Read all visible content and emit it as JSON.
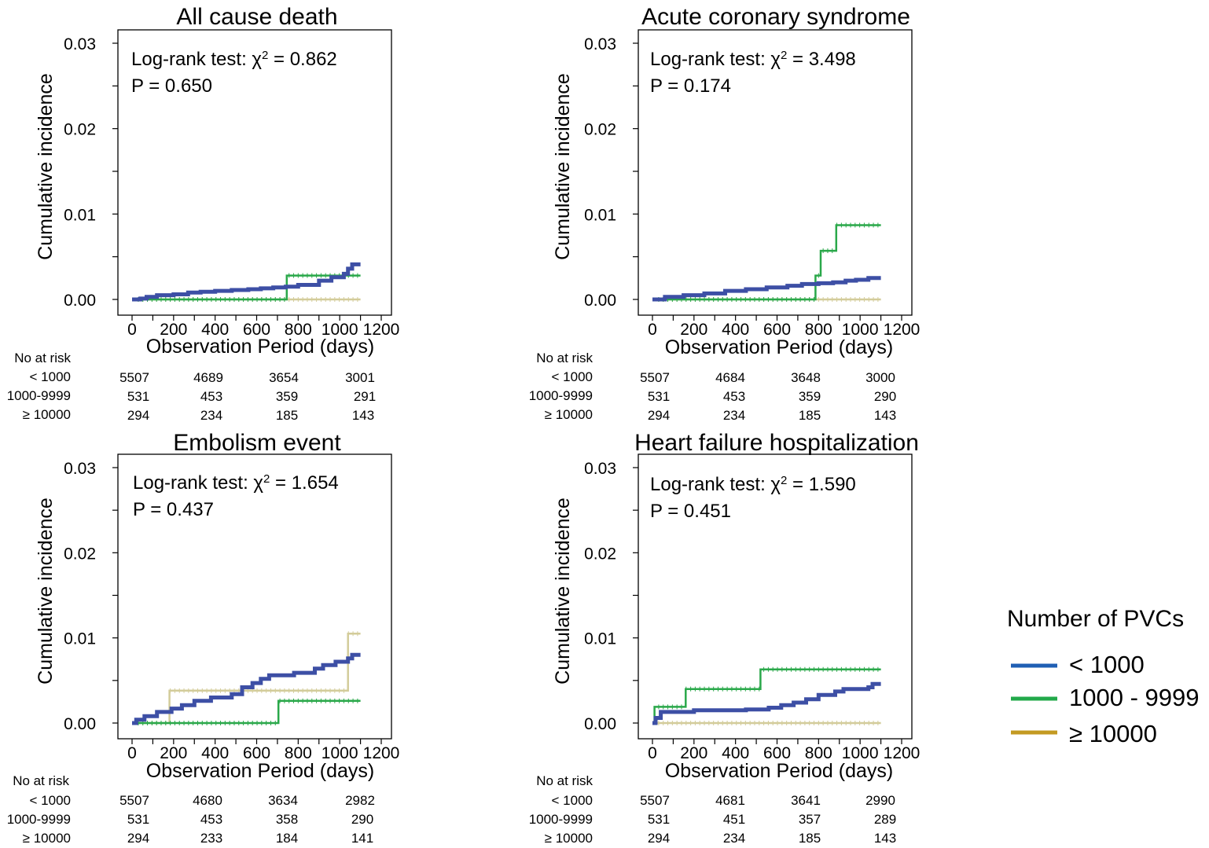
{
  "panels": [
    {
      "title": "All cause death",
      "log_rank_label": "Log-rank test: χ",
      "chi_superscript": "2",
      "chi_value": " = 0.862",
      "p_text": "P = 0.650"
    },
    {
      "title": "Acute coronary syndrome",
      "log_rank_label": "Log-rank test: χ",
      "chi_superscript": "2",
      "chi_value": " = 3.498",
      "p_text": "P = 0.174"
    },
    {
      "title": "Embolism event",
      "log_rank_label": "Log-rank test: χ",
      "chi_superscript": "2",
      "chi_value": " = 1.654",
      "p_text": "P = 0.437"
    },
    {
      "title": "Heart failure hospitalization",
      "log_rank_label": "Log-rank test: χ",
      "chi_superscript": "2",
      "chi_value": " = 1.590",
      "p_text": "P = 0.451"
    }
  ],
  "risk_tables": [
    {
      "header": "No at risk",
      "rows": [
        {
          "label": "< 1000",
          "values": [
            "5507",
            "4689",
            "3654",
            "3001"
          ]
        },
        {
          "label": "1000-9999",
          "values": [
            "531",
            "453",
            "359",
            "291"
          ]
        },
        {
          "label": "≥ 10000",
          "values": [
            "294",
            "234",
            "185",
            "143"
          ]
        }
      ]
    },
    {
      "header": "No at risk",
      "rows": [
        {
          "label": "< 1000",
          "values": [
            "5507",
            "4684",
            "3648",
            "3000"
          ]
        },
        {
          "label": "1000-9999",
          "values": [
            "531",
            "453",
            "359",
            "290"
          ]
        },
        {
          "label": "≥ 10000",
          "values": [
            "294",
            "234",
            "185",
            "143"
          ]
        }
      ]
    },
    {
      "header": "No at risk",
      "rows": [
        {
          "label": "< 1000",
          "values": [
            "5507",
            "4680",
            "3634",
            "2982"
          ]
        },
        {
          "label": "1000-9999",
          "values": [
            "531",
            "453",
            "358",
            "290"
          ]
        },
        {
          "label": "≥ 10000",
          "values": [
            "294",
            "233",
            "184",
            "141"
          ]
        }
      ]
    },
    {
      "header": "No at risk",
      "rows": [
        {
          "label": "< 1000",
          "values": [
            "5507",
            "4681",
            "3641",
            "2990"
          ]
        },
        {
          "label": "1000-9999",
          "values": [
            "531",
            "451",
            "357",
            "289"
          ]
        },
        {
          "label": "≥ 10000",
          "values": [
            "294",
            "234",
            "185",
            "143"
          ]
        }
      ]
    }
  ],
  "legend": {
    "title": "Number of PVCs",
    "items": [
      {
        "label": "< 1000",
        "color": "#1f5fb4"
      },
      {
        "label": "1000 - 9999",
        "color": "#22a94a"
      },
      {
        "label": "≥ 10000",
        "color": "#c39a22"
      }
    ]
  },
  "chart_data": [
    {
      "type": "line",
      "title": "All cause death",
      "xlabel": "Observation Period (days)",
      "ylabel": "Cumulative incidence",
      "xlim": [
        0,
        1200
      ],
      "ylim": [
        0,
        0.03
      ],
      "x_ticks": [
        0,
        200,
        400,
        600,
        800,
        1000,
        1200
      ],
      "y_ticks": [
        0.0,
        0.01,
        0.02,
        0.03
      ],
      "y_tick_labels": [
        "0.00",
        "0.01",
        "0.02",
        "0.03"
      ],
      "grid": false,
      "series": [
        {
          "name": "< 1000",
          "color": "#3d4fa5",
          "width": 5,
          "points": [
            [
              0,
              0
            ],
            [
              40,
              0.0001
            ],
            [
              70,
              0.0003
            ],
            [
              120,
              0.0005
            ],
            [
              200,
              0.0006
            ],
            [
              270,
              0.0008
            ],
            [
              330,
              0.0009
            ],
            [
              400,
              0.001
            ],
            [
              480,
              0.0011
            ],
            [
              560,
              0.0012
            ],
            [
              620,
              0.0013
            ],
            [
              680,
              0.0014
            ],
            [
              740,
              0.0015
            ],
            [
              800,
              0.0017
            ],
            [
              900,
              0.0022
            ],
            [
              960,
              0.0026
            ],
            [
              1020,
              0.003
            ],
            [
              1040,
              0.0036
            ],
            [
              1060,
              0.0041
            ],
            [
              1100,
              0.0041
            ]
          ]
        },
        {
          "name": "1000 - 9999",
          "color": "#2aa84a",
          "width": 2.5,
          "points": [
            [
              0,
              0
            ],
            [
              745,
              0
            ],
            [
              745,
              0.0028
            ],
            [
              1100,
              0.0028
            ]
          ]
        },
        {
          "name": "≥ 10000",
          "color": "#d3cc9a",
          "width": 2.5,
          "points": [
            [
              0,
              0
            ],
            [
              1100,
              0
            ]
          ]
        }
      ]
    },
    {
      "type": "line",
      "title": "Acute coronary syndrome",
      "xlabel": "Observation Period (days)",
      "ylabel": "Cumulative incidence",
      "xlim": [
        0,
        1200
      ],
      "ylim": [
        0,
        0.03
      ],
      "x_ticks": [
        0,
        200,
        400,
        600,
        800,
        1000,
        1200
      ],
      "y_ticks": [
        0.0,
        0.01,
        0.02,
        0.03
      ],
      "y_tick_labels": [
        "0.00",
        "0.01",
        "0.02",
        "0.03"
      ],
      "grid": false,
      "series": [
        {
          "name": "< 1000",
          "color": "#3d4fa5",
          "width": 5,
          "points": [
            [
              0,
              0
            ],
            [
              60,
              0.0003
            ],
            [
              150,
              0.0005
            ],
            [
              250,
              0.0007
            ],
            [
              350,
              0.001
            ],
            [
              450,
              0.0012
            ],
            [
              550,
              0.0014
            ],
            [
              650,
              0.0016
            ],
            [
              720,
              0.0018
            ],
            [
              800,
              0.0019
            ],
            [
              870,
              0.002
            ],
            [
              930,
              0.0022
            ],
            [
              980,
              0.0023
            ],
            [
              1040,
              0.0025
            ],
            [
              1100,
              0.0025
            ]
          ]
        },
        {
          "name": "1000 - 9999",
          "color": "#2aa84a",
          "width": 2.5,
          "points": [
            [
              0,
              0
            ],
            [
              785,
              0
            ],
            [
              785,
              0.0028
            ],
            [
              810,
              0.0028
            ],
            [
              810,
              0.0057
            ],
            [
              885,
              0.0057
            ],
            [
              885,
              0.0087
            ],
            [
              1100,
              0.0087
            ]
          ]
        },
        {
          "name": "≥ 10000",
          "color": "#d3cc9a",
          "width": 2.5,
          "points": [
            [
              0,
              0
            ],
            [
              1100,
              0
            ]
          ]
        }
      ]
    },
    {
      "type": "line",
      "title": "Embolism event",
      "xlabel": "Observation Period (days)",
      "ylabel": "Cumulative incidence",
      "xlim": [
        0,
        1200
      ],
      "ylim": [
        0,
        0.03
      ],
      "x_ticks": [
        0,
        200,
        400,
        600,
        800,
        1000,
        1200
      ],
      "y_ticks": [
        0.0,
        0.01,
        0.02,
        0.03
      ],
      "y_tick_labels": [
        "0.00",
        "0.01",
        "0.02",
        "0.03"
      ],
      "grid": false,
      "series": [
        {
          "name": "< 1000",
          "color": "#3d4fa5",
          "width": 5,
          "points": [
            [
              0,
              0
            ],
            [
              20,
              0.0004
            ],
            [
              60,
              0.0008
            ],
            [
              120,
              0.0013
            ],
            [
              190,
              0.0017
            ],
            [
              240,
              0.0021
            ],
            [
              300,
              0.0026
            ],
            [
              380,
              0.003
            ],
            [
              480,
              0.0034
            ],
            [
              530,
              0.0042
            ],
            [
              580,
              0.0047
            ],
            [
              620,
              0.0052
            ],
            [
              660,
              0.0056
            ],
            [
              780,
              0.0059
            ],
            [
              880,
              0.0064
            ],
            [
              920,
              0.0068
            ],
            [
              980,
              0.0072
            ],
            [
              1040,
              0.0076
            ],
            [
              1060,
              0.008
            ],
            [
              1100,
              0.008
            ]
          ]
        },
        {
          "name": "1000 - 9999",
          "color": "#2aa84a",
          "width": 2.5,
          "points": [
            [
              0,
              0
            ],
            [
              705,
              0
            ],
            [
              705,
              0.0026
            ],
            [
              1100,
              0.0026
            ]
          ]
        },
        {
          "name": "≥ 10000",
          "color": "#d3cc9a",
          "width": 2.5,
          "points": [
            [
              0,
              0
            ],
            [
              180,
              0
            ],
            [
              180,
              0.0038
            ],
            [
              1040,
              0.0038
            ],
            [
              1040,
              0.0105
            ],
            [
              1100,
              0.0105
            ]
          ]
        }
      ]
    },
    {
      "type": "line",
      "title": "Heart failure hospitalization",
      "xlabel": "Observation Period (days)",
      "ylabel": "Cumulative incidence",
      "xlim": [
        0,
        1200
      ],
      "ylim": [
        0,
        0.03
      ],
      "x_ticks": [
        0,
        200,
        400,
        600,
        800,
        1000,
        1200
      ],
      "y_ticks": [
        0.0,
        0.01,
        0.02,
        0.03
      ],
      "y_tick_labels": [
        "0.00",
        "0.01",
        "0.02",
        "0.03"
      ],
      "grid": false,
      "series": [
        {
          "name": "< 1000",
          "color": "#3d4fa5",
          "width": 5,
          "points": [
            [
              0,
              0
            ],
            [
              15,
              0.0006
            ],
            [
              40,
              0.0013
            ],
            [
              200,
              0.0015
            ],
            [
              450,
              0.0016
            ],
            [
              560,
              0.0018
            ],
            [
              620,
              0.0021
            ],
            [
              680,
              0.0024
            ],
            [
              740,
              0.0028
            ],
            [
              800,
              0.0033
            ],
            [
              880,
              0.0037
            ],
            [
              920,
              0.004
            ],
            [
              1040,
              0.0042
            ],
            [
              1060,
              0.0046
            ],
            [
              1100,
              0.0046
            ]
          ]
        },
        {
          "name": "1000 - 9999",
          "color": "#2aa84a",
          "width": 2.5,
          "points": [
            [
              0,
              0
            ],
            [
              10,
              0
            ],
            [
              10,
              0.0019
            ],
            [
              160,
              0.0019
            ],
            [
              160,
              0.004
            ],
            [
              520,
              0.004
            ],
            [
              520,
              0.0063
            ],
            [
              1100,
              0.0063
            ]
          ]
        },
        {
          "name": "≥ 10000",
          "color": "#d3cc9a",
          "width": 2.5,
          "points": [
            [
              0,
              0
            ],
            [
              1100,
              0
            ]
          ]
        }
      ]
    }
  ]
}
